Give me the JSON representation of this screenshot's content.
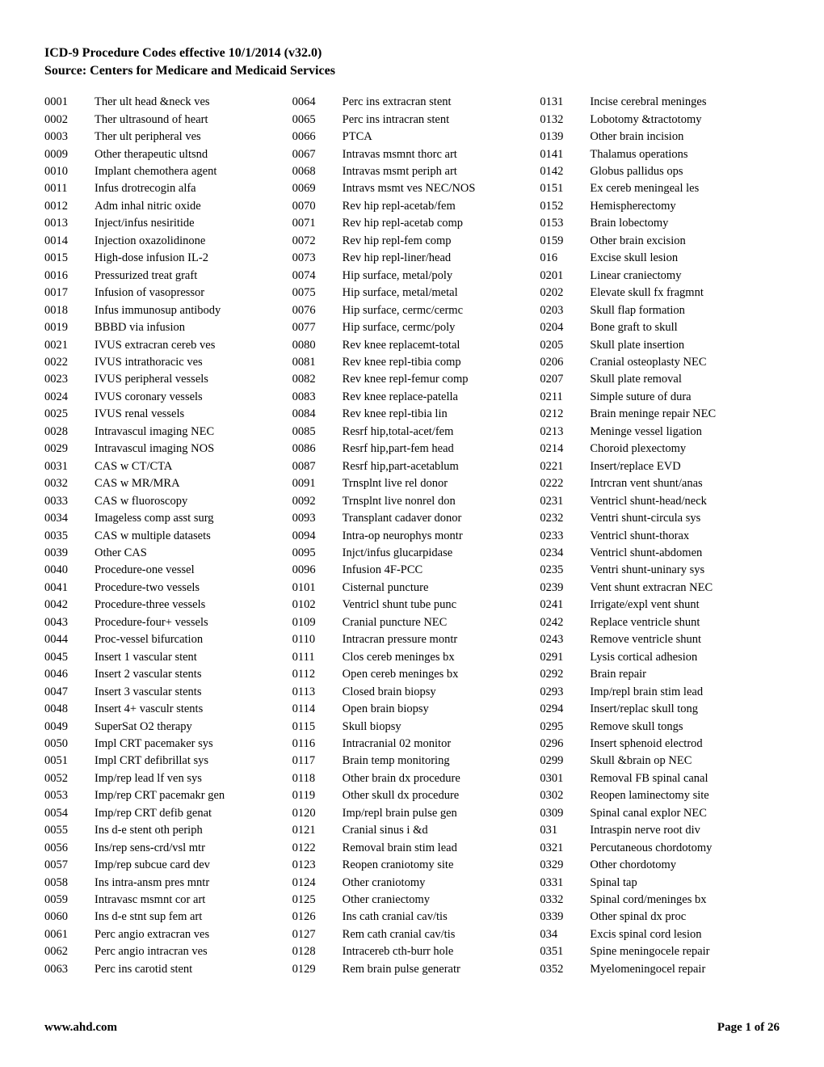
{
  "header": {
    "line1": "ICD-9 Procedure Codes effective 10/1/2014 (v32.0)",
    "line2": "Source:  Centers for Medicare and Medicaid Services"
  },
  "footer": {
    "left": "www.ahd.com",
    "right": "Page 1 of 26"
  },
  "columns": [
    [
      {
        "code": "0001",
        "desc": "Ther ult head &neck ves"
      },
      {
        "code": "0002",
        "desc": "Ther ultrasound of heart"
      },
      {
        "code": "0003",
        "desc": "Ther ult peripheral ves"
      },
      {
        "code": "0009",
        "desc": "Other therapeutic ultsnd"
      },
      {
        "code": "0010",
        "desc": "Implant chemothera agent"
      },
      {
        "code": "0011",
        "desc": "Infus drotrecogin alfa"
      },
      {
        "code": "0012",
        "desc": "Adm inhal nitric oxide"
      },
      {
        "code": "0013",
        "desc": "Inject/infus nesiritide"
      },
      {
        "code": "0014",
        "desc": "Injection oxazolidinone"
      },
      {
        "code": "0015",
        "desc": "High-dose infusion IL-2"
      },
      {
        "code": "0016",
        "desc": "Pressurized treat graft"
      },
      {
        "code": "0017",
        "desc": "Infusion of vasopressor"
      },
      {
        "code": "0018",
        "desc": "Infus immunosup antibody"
      },
      {
        "code": "0019",
        "desc": "BBBD via infusion"
      },
      {
        "code": "0021",
        "desc": "IVUS extracran cereb ves"
      },
      {
        "code": "0022",
        "desc": "IVUS intrathoracic ves"
      },
      {
        "code": "0023",
        "desc": "IVUS peripheral vessels"
      },
      {
        "code": "0024",
        "desc": "IVUS coronary vessels"
      },
      {
        "code": "0025",
        "desc": "IVUS renal vessels"
      },
      {
        "code": "0028",
        "desc": "Intravascul imaging NEC"
      },
      {
        "code": "0029",
        "desc": "Intravascul imaging NOS"
      },
      {
        "code": "0031",
        "desc": "CAS w CT/CTA"
      },
      {
        "code": "0032",
        "desc": "CAS w MR/MRA"
      },
      {
        "code": "0033",
        "desc": "CAS w fluoroscopy"
      },
      {
        "code": "0034",
        "desc": "Imageless comp asst surg"
      },
      {
        "code": "0035",
        "desc": "CAS w multiple datasets"
      },
      {
        "code": "0039",
        "desc": "Other CAS"
      },
      {
        "code": "0040",
        "desc": "Procedure-one vessel"
      },
      {
        "code": "0041",
        "desc": "Procedure-two vessels"
      },
      {
        "code": "0042",
        "desc": "Procedure-three vessels"
      },
      {
        "code": "0043",
        "desc": "Procedure-four+ vessels"
      },
      {
        "code": "0044",
        "desc": "Proc-vessel bifurcation"
      },
      {
        "code": "0045",
        "desc": "Insert 1 vascular stent"
      },
      {
        "code": "0046",
        "desc": "Insert 2 vascular stents"
      },
      {
        "code": "0047",
        "desc": "Insert 3 vascular stents"
      },
      {
        "code": "0048",
        "desc": "Insert 4+ vasculr stents"
      },
      {
        "code": "0049",
        "desc": "SuperSat O2 therapy"
      },
      {
        "code": "0050",
        "desc": "Impl CRT pacemaker sys"
      },
      {
        "code": "0051",
        "desc": "Impl CRT defibrillat sys"
      },
      {
        "code": "0052",
        "desc": "Imp/rep lead lf ven sys"
      },
      {
        "code": "0053",
        "desc": "Imp/rep CRT pacemakr gen"
      },
      {
        "code": "0054",
        "desc": "Imp/rep CRT defib genat"
      },
      {
        "code": "0055",
        "desc": "Ins d-e stent oth periph"
      },
      {
        "code": "0056",
        "desc": "Ins/rep sens-crd/vsl mtr"
      },
      {
        "code": "0057",
        "desc": "Imp/rep subcue card dev"
      },
      {
        "code": "0058",
        "desc": "Ins intra-ansm pres mntr"
      },
      {
        "code": "0059",
        "desc": "Intravasc msmnt cor art"
      },
      {
        "code": "0060",
        "desc": "Ins d-e stnt sup fem art"
      },
      {
        "code": "0061",
        "desc": "Perc angio extracran ves"
      },
      {
        "code": "0062",
        "desc": "Perc angio intracran ves"
      },
      {
        "code": "0063",
        "desc": "Perc ins carotid stent"
      }
    ],
    [
      {
        "code": "0064",
        "desc": "Perc ins extracran stent"
      },
      {
        "code": "0065",
        "desc": "Perc ins intracran stent"
      },
      {
        "code": "0066",
        "desc": "PTCA"
      },
      {
        "code": "0067",
        "desc": "Intravas msmnt thorc art"
      },
      {
        "code": "0068",
        "desc": "Intravas msmt periph art"
      },
      {
        "code": "0069",
        "desc": "Intravs msmt ves NEC/NOS"
      },
      {
        "code": "0070",
        "desc": "Rev hip repl-acetab/fem"
      },
      {
        "code": "0071",
        "desc": "Rev hip repl-acetab comp"
      },
      {
        "code": "0072",
        "desc": "Rev hip repl-fem comp"
      },
      {
        "code": "0073",
        "desc": "Rev hip repl-liner/head"
      },
      {
        "code": "0074",
        "desc": "Hip surface, metal/poly"
      },
      {
        "code": "0075",
        "desc": "Hip surface, metal/metal"
      },
      {
        "code": "0076",
        "desc": "Hip surface, cermc/cermc"
      },
      {
        "code": "0077",
        "desc": "Hip surface, cermc/poly"
      },
      {
        "code": "0080",
        "desc": "Rev knee replacemt-total"
      },
      {
        "code": "0081",
        "desc": "Rev knee repl-tibia comp"
      },
      {
        "code": "0082",
        "desc": "Rev knee repl-femur comp"
      },
      {
        "code": "0083",
        "desc": "Rev knee replace-patella"
      },
      {
        "code": "0084",
        "desc": "Rev knee repl-tibia lin"
      },
      {
        "code": "0085",
        "desc": "Resrf hip,total-acet/fem"
      },
      {
        "code": "0086",
        "desc": "Resrf hip,part-fem head"
      },
      {
        "code": "0087",
        "desc": "Resrf hip,part-acetablum"
      },
      {
        "code": "0091",
        "desc": "Trnsplnt live rel donor"
      },
      {
        "code": "0092",
        "desc": "Trnsplnt live nonrel don"
      },
      {
        "code": "0093",
        "desc": "Transplant cadaver donor"
      },
      {
        "code": "0094",
        "desc": "Intra-op neurophys montr"
      },
      {
        "code": "0095",
        "desc": "Injct/infus glucarpidase"
      },
      {
        "code": "0096",
        "desc": "Infusion 4F-PCC"
      },
      {
        "code": "0101",
        "desc": "Cisternal puncture"
      },
      {
        "code": "0102",
        "desc": "Ventricl shunt tube punc"
      },
      {
        "code": "0109",
        "desc": "Cranial puncture NEC"
      },
      {
        "code": "0110",
        "desc": "Intracran pressure montr"
      },
      {
        "code": "0111",
        "desc": "Clos cereb meninges bx"
      },
      {
        "code": "0112",
        "desc": "Open cereb meninges bx"
      },
      {
        "code": "0113",
        "desc": "Closed brain biopsy"
      },
      {
        "code": "0114",
        "desc": "Open brain biopsy"
      },
      {
        "code": "0115",
        "desc": "Skull biopsy"
      },
      {
        "code": "0116",
        "desc": "Intracranial 02 monitor"
      },
      {
        "code": "0117",
        "desc": "Brain temp monitoring"
      },
      {
        "code": "0118",
        "desc": "Other brain dx procedure"
      },
      {
        "code": "0119",
        "desc": "Other skull dx procedure"
      },
      {
        "code": "0120",
        "desc": "Imp/repl brain pulse gen"
      },
      {
        "code": "0121",
        "desc": "Cranial sinus i &d"
      },
      {
        "code": "0122",
        "desc": "Removal brain stim lead"
      },
      {
        "code": "0123",
        "desc": "Reopen craniotomy site"
      },
      {
        "code": "0124",
        "desc": "Other craniotomy"
      },
      {
        "code": "0125",
        "desc": "Other craniectomy"
      },
      {
        "code": "0126",
        "desc": "Ins cath cranial cav/tis"
      },
      {
        "code": "0127",
        "desc": "Rem cath cranial cav/tis"
      },
      {
        "code": "0128",
        "desc": "Intracereb cth-burr hole"
      },
      {
        "code": "0129",
        "desc": "Rem brain pulse generatr"
      }
    ],
    [
      {
        "code": "0131",
        "desc": "Incise cerebral meninges"
      },
      {
        "code": "0132",
        "desc": "Lobotomy &tractotomy"
      },
      {
        "code": "0139",
        "desc": "Other brain incision"
      },
      {
        "code": "0141",
        "desc": "Thalamus operations"
      },
      {
        "code": "0142",
        "desc": "Globus pallidus ops"
      },
      {
        "code": "0151",
        "desc": "Ex cereb meningeal les"
      },
      {
        "code": "0152",
        "desc": "Hemispherectomy"
      },
      {
        "code": "0153",
        "desc": "Brain lobectomy"
      },
      {
        "code": "0159",
        "desc": "Other brain excision"
      },
      {
        "code": "016",
        "desc": "Excise skull lesion"
      },
      {
        "code": "0201",
        "desc": "Linear craniectomy"
      },
      {
        "code": "0202",
        "desc": "Elevate skull fx fragmnt"
      },
      {
        "code": "0203",
        "desc": "Skull flap formation"
      },
      {
        "code": "0204",
        "desc": "Bone graft to skull"
      },
      {
        "code": "0205",
        "desc": "Skull plate insertion"
      },
      {
        "code": "0206",
        "desc": "Cranial osteoplasty NEC"
      },
      {
        "code": "0207",
        "desc": "Skull plate removal"
      },
      {
        "code": "0211",
        "desc": "Simple suture of dura"
      },
      {
        "code": "0212",
        "desc": "Brain meninge repair NEC"
      },
      {
        "code": "0213",
        "desc": "Meninge vessel ligation"
      },
      {
        "code": "0214",
        "desc": "Choroid plexectomy"
      },
      {
        "code": "0221",
        "desc": "Insert/replace EVD"
      },
      {
        "code": "0222",
        "desc": "Intrcran vent shunt/anas"
      },
      {
        "code": "0231",
        "desc": "Ventricl shunt-head/neck"
      },
      {
        "code": "0232",
        "desc": "Ventri shunt-circula sys"
      },
      {
        "code": "0233",
        "desc": "Ventricl shunt-thorax"
      },
      {
        "code": "0234",
        "desc": "Ventricl shunt-abdomen"
      },
      {
        "code": "0235",
        "desc": "Ventri shunt-uninary sys"
      },
      {
        "code": "0239",
        "desc": "Vent shunt extracran NEC"
      },
      {
        "code": "0241",
        "desc": "Irrigate/expl vent shunt"
      },
      {
        "code": "0242",
        "desc": "Replace ventricle shunt"
      },
      {
        "code": "0243",
        "desc": "Remove ventricle shunt"
      },
      {
        "code": "0291",
        "desc": "Lysis cortical adhesion"
      },
      {
        "code": "0292",
        "desc": "Brain repair"
      },
      {
        "code": "0293",
        "desc": "Imp/repl brain stim lead"
      },
      {
        "code": "0294",
        "desc": "Insert/replac skull tong"
      },
      {
        "code": "0295",
        "desc": "Remove skull tongs"
      },
      {
        "code": "0296",
        "desc": "Insert sphenoid electrod"
      },
      {
        "code": "0299",
        "desc": "Skull &brain op NEC"
      },
      {
        "code": "0301",
        "desc": "Removal FB spinal canal"
      },
      {
        "code": "0302",
        "desc": "Reopen laminectomy site"
      },
      {
        "code": "0309",
        "desc": "Spinal canal explor NEC"
      },
      {
        "code": "031",
        "desc": "Intraspin nerve root div"
      },
      {
        "code": "0321",
        "desc": "Percutaneous chordotomy"
      },
      {
        "code": "0329",
        "desc": "Other chordotomy"
      },
      {
        "code": "0331",
        "desc": "Spinal tap"
      },
      {
        "code": "0332",
        "desc": "Spinal cord/meninges bx"
      },
      {
        "code": "0339",
        "desc": "Other spinal dx proc"
      },
      {
        "code": "034",
        "desc": "Excis spinal cord lesion"
      },
      {
        "code": "0351",
        "desc": "Spine meningocele repair"
      },
      {
        "code": "0352",
        "desc": "Myelomeningocel repair"
      }
    ]
  ]
}
